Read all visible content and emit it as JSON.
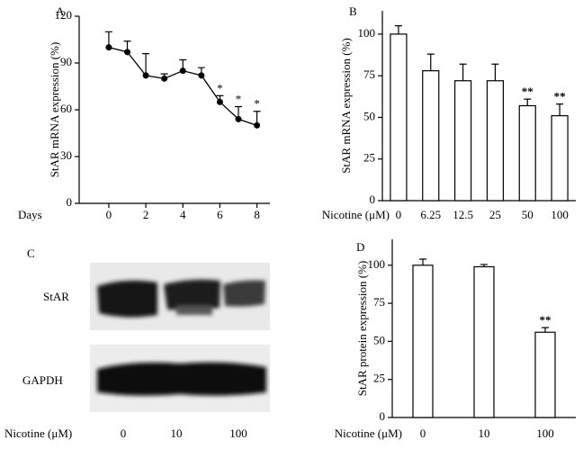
{
  "chart_data": [
    {
      "type": "line",
      "panel": "A",
      "y_label": "StAR mRNA expression (%)",
      "x_label": "Days",
      "x": [
        0,
        1,
        2,
        3,
        4,
        5,
        6,
        7,
        8
      ],
      "series": [
        {
          "color": "#000000",
          "values": [
            100,
            97,
            82,
            80,
            85,
            82,
            65,
            54,
            50
          ],
          "errors": [
            10,
            7,
            14,
            3,
            7,
            5,
            4,
            8,
            9
          ]
        }
      ],
      "annotations": [
        null,
        null,
        null,
        null,
        null,
        null,
        "*",
        "*",
        "*"
      ],
      "xlim": [
        -1.6,
        8.7
      ],
      "xticks": [
        0,
        2,
        4,
        6,
        8
      ],
      "ylim": [
        0,
        120
      ],
      "yticks": [
        0,
        30,
        60,
        90,
        120
      ]
    },
    {
      "type": "bar",
      "panel": "B",
      "y_label": "StAR mRNA expression (%)",
      "x_label": "Nicotine (μM)",
      "categories": [
        "0",
        "6.25",
        "12.5",
        "25",
        "50",
        "100"
      ],
      "values": [
        100,
        78,
        72,
        72,
        57,
        51
      ],
      "errors": [
        5,
        10,
        10,
        10,
        4,
        7
      ],
      "annotations": [
        null,
        null,
        null,
        null,
        "**",
        "**"
      ],
      "color": "#ffffff",
      "ylim": [
        0,
        114
      ],
      "yticks": [
        0,
        25,
        50,
        75,
        100
      ]
    },
    {
      "type": "bar",
      "panel": "D",
      "y_label": "StAR protein expression (%)",
      "x_label": "Nicotine (μM)",
      "categories": [
        "0",
        "10",
        "100"
      ],
      "values": [
        100,
        99,
        56
      ],
      "errors": [
        4,
        1.5,
        3
      ],
      "annotations": [
        null,
        null,
        "**"
      ],
      "color": "#ffffff",
      "ylim": [
        0,
        117
      ],
      "yticks": [
        0,
        25,
        50,
        75,
        100
      ]
    }
  ],
  "blot": {
    "panel": "C",
    "rows": [
      "StAR",
      "GAPDH"
    ],
    "x_label": "Nicotine (μM)",
    "lanes": [
      "0",
      "10",
      "100"
    ]
  }
}
